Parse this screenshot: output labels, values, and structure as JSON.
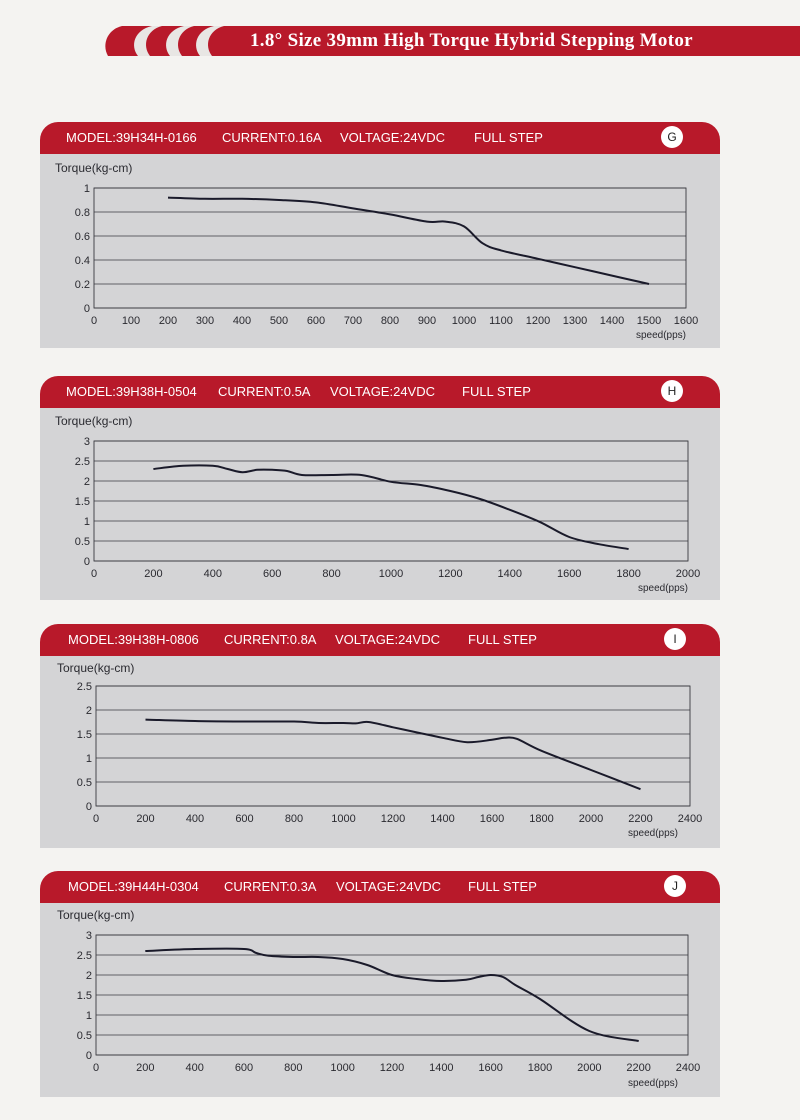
{
  "page": {
    "title": "1.8° Size 39mm High Torque Hybrid Stepping Motor"
  },
  "panels": [
    {
      "model": "MODEL:39H34H-0166",
      "current": "CURRENT:0.16A",
      "voltage": "VOLTAGE:24VDC",
      "step": "FULL STEP",
      "badge": "G"
    },
    {
      "model": "MODEL:39H38H-0504",
      "current": "CURRENT:0.5A",
      "voltage": "VOLTAGE:24VDC",
      "step": "FULL STEP",
      "badge": "H"
    },
    {
      "model": "MODEL:39H38H-0806",
      "current": "CURRENT:0.8A",
      "voltage": "VOLTAGE:24VDC",
      "step": "FULL STEP",
      "badge": "I"
    },
    {
      "model": "MODEL:39H44H-0304",
      "current": "CURRENT:0.3A",
      "voltage": "VOLTAGE:24VDC",
      "step": "FULL STEP",
      "badge": "J"
    }
  ],
  "colors": {
    "accent": "#b8192a",
    "plot_bg": "#d4d4d6",
    "line": "#1a1a2a"
  },
  "chart_data": [
    {
      "type": "line",
      "ylabel": "Torque(kg-cm)",
      "xlabel": "speed(pps)",
      "xlim": [
        0,
        1600
      ],
      "ylim": [
        0,
        1
      ],
      "xticks": [
        0,
        100,
        200,
        300,
        400,
        500,
        600,
        700,
        800,
        900,
        1000,
        1100,
        1200,
        1300,
        1400,
        1500,
        1600
      ],
      "yticks": [
        0,
        0.2,
        0.4,
        0.6,
        0.8,
        1
      ],
      "ytick_labels": [
        "0",
        "0.2",
        "0.4",
        "0.6",
        "0.8",
        "1"
      ],
      "grid": true,
      "series": [
        {
          "x": [
            200,
            300,
            400,
            500,
            600,
            700,
            800,
            900,
            950,
            1000,
            1050,
            1100,
            1200,
            1300,
            1400,
            1500
          ],
          "y": [
            0.92,
            0.91,
            0.91,
            0.9,
            0.88,
            0.83,
            0.78,
            0.72,
            0.72,
            0.68,
            0.54,
            0.48,
            0.41,
            0.34,
            0.27,
            0.2
          ]
        }
      ]
    },
    {
      "type": "line",
      "ylabel": "Torque(kg-cm)",
      "xlabel": "speed(pps)",
      "xlim": [
        0,
        2000
      ],
      "ylim": [
        0,
        3
      ],
      "xticks": [
        0,
        200,
        400,
        600,
        800,
        1000,
        1200,
        1400,
        1600,
        1800,
        2000
      ],
      "yticks": [
        0,
        0.5,
        1,
        1.5,
        2,
        2.5,
        3
      ],
      "ytick_labels": [
        "0",
        "0.5",
        "1",
        "1.5",
        "2",
        "2.5",
        "3"
      ],
      "grid": true,
      "series": [
        {
          "x": [
            200,
            300,
            400,
            450,
            500,
            550,
            600,
            650,
            700,
            800,
            900,
            1000,
            1100,
            1200,
            1300,
            1400,
            1500,
            1600,
            1700,
            1800
          ],
          "y": [
            2.3,
            2.38,
            2.38,
            2.3,
            2.22,
            2.28,
            2.28,
            2.25,
            2.15,
            2.15,
            2.15,
            1.98,
            1.9,
            1.75,
            1.55,
            1.28,
            0.98,
            0.6,
            0.42,
            0.3
          ]
        }
      ]
    },
    {
      "type": "line",
      "ylabel": "Torque(kg-cm)",
      "xlabel": "speed(pps)",
      "xlim": [
        0,
        2400
      ],
      "ylim": [
        0,
        2.5
      ],
      "xticks": [
        0,
        200,
        400,
        600,
        800,
        1000,
        1200,
        1400,
        1600,
        1800,
        2000,
        2200,
        2400
      ],
      "yticks": [
        0,
        0.5,
        1,
        1.5,
        2,
        2.5
      ],
      "ytick_labels": [
        "0",
        "0.5",
        "1",
        "1.5",
        "2",
        "2.5"
      ],
      "grid": true,
      "series": [
        {
          "x": [
            200,
            400,
            600,
            800,
            900,
            1000,
            1050,
            1100,
            1200,
            1300,
            1400,
            1500,
            1600,
            1650,
            1700,
            1800,
            2000,
            2200
          ],
          "y": [
            1.8,
            1.77,
            1.76,
            1.76,
            1.73,
            1.73,
            1.72,
            1.75,
            1.64,
            1.53,
            1.42,
            1.33,
            1.38,
            1.42,
            1.4,
            1.15,
            0.75,
            0.35
          ]
        }
      ]
    },
    {
      "type": "line",
      "ylabel": "Torque(kg-cm)",
      "xlabel": "speed(pps)",
      "xlim": [
        0,
        2400
      ],
      "ylim": [
        0,
        3
      ],
      "xticks": [
        0,
        200,
        400,
        600,
        800,
        1000,
        1200,
        1400,
        1600,
        1800,
        2000,
        2200,
        2400
      ],
      "yticks": [
        0,
        0.5,
        1,
        1.5,
        2,
        2.5,
        3
      ],
      "ytick_labels": [
        "0",
        "0.5",
        "1",
        "1.5",
        "2",
        "2.5",
        "3"
      ],
      "grid": true,
      "series": [
        {
          "x": [
            200,
            400,
            600,
            650,
            700,
            800,
            900,
            1000,
            1100,
            1200,
            1300,
            1400,
            1500,
            1550,
            1600,
            1650,
            1700,
            1800,
            2000,
            2200
          ],
          "y": [
            2.6,
            2.65,
            2.65,
            2.55,
            2.48,
            2.45,
            2.45,
            2.4,
            2.25,
            2.0,
            1.9,
            1.85,
            1.88,
            1.95,
            2.0,
            1.95,
            1.75,
            1.4,
            0.6,
            0.35
          ]
        }
      ]
    }
  ]
}
